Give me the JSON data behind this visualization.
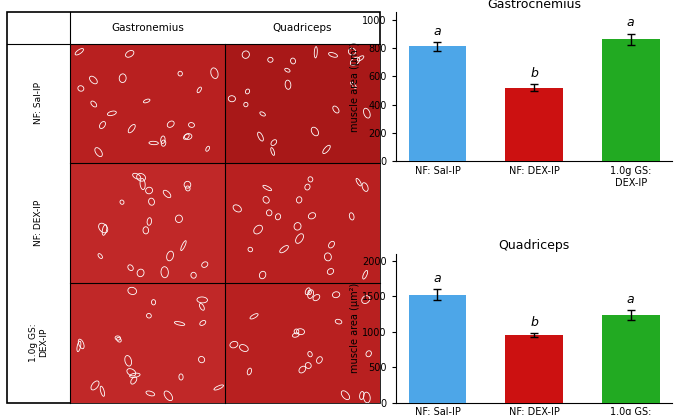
{
  "gastro_values": [
    810,
    520,
    860
  ],
  "gastro_errors": [
    30,
    25,
    40
  ],
  "quad_values": [
    1520,
    950,
    1230
  ],
  "quad_errors": [
    80,
    30,
    70
  ],
  "categories": [
    "NF: Sal-IP",
    "NF: DEX-IP",
    "1.0g GS:\nDEX-IP"
  ],
  "bar_colors": [
    "#4da6e8",
    "#cc1111",
    "#22aa22"
  ],
  "gastro_title": "Gastrocnemius",
  "quad_title": "Quadriceps",
  "ylabel": "muscle area (μm²)",
  "gastro_ylim": [
    0,
    1050
  ],
  "quad_ylim": [
    0,
    2100
  ],
  "gastro_yticks": [
    0,
    200,
    400,
    600,
    800,
    1000
  ],
  "quad_yticks": [
    0,
    500,
    1000,
    1500,
    2000
  ],
  "sig_labels_gastro": [
    "a",
    "b",
    "a"
  ],
  "sig_labels_quad": [
    "a",
    "b",
    "a"
  ],
  "row_labels": [
    "NF: Sal-IP",
    "NF: DEX-IP",
    "1.0g GS:\nDEX-IP"
  ],
  "col_labels": [
    "Gastronemius",
    "Quadriceps"
  ],
  "background_color": "#ffffff",
  "border_color": "#000000"
}
